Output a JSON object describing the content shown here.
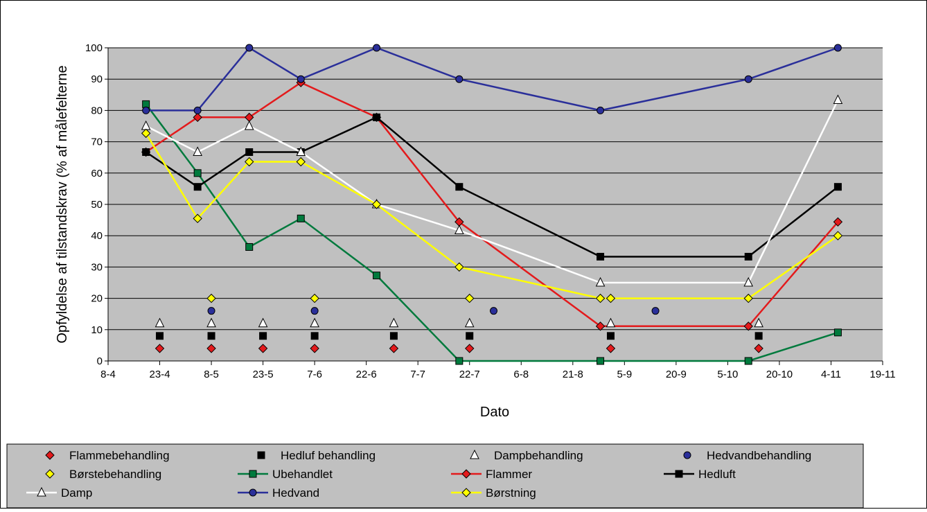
{
  "chart_data": {
    "type": "line",
    "xlabel": "Dato",
    "ylabel": "Opfyldelse af tilstandskrav (% af målefelterne",
    "ylim": [
      0,
      100
    ],
    "yticks": [
      0,
      10,
      20,
      30,
      40,
      50,
      60,
      70,
      80,
      90,
      100
    ],
    "xlim": [
      "2008-04-08",
      "2008-11-19"
    ],
    "xticks": [
      {
        "date": "2008-04-08",
        "label": "8-4"
      },
      {
        "date": "2008-04-23",
        "label": "23-4"
      },
      {
        "date": "2008-05-08",
        "label": "8-5"
      },
      {
        "date": "2008-05-23",
        "label": "23-5"
      },
      {
        "date": "2008-06-07",
        "label": "7-6"
      },
      {
        "date": "2008-06-22",
        "label": "22-6"
      },
      {
        "date": "2008-07-07",
        "label": "7-7"
      },
      {
        "date": "2008-07-22",
        "label": "22-7"
      },
      {
        "date": "2008-08-06",
        "label": "6-8"
      },
      {
        "date": "2008-08-21",
        "label": "21-8"
      },
      {
        "date": "2008-09-05",
        "label": "5-9"
      },
      {
        "date": "2008-09-20",
        "label": "20-9"
      },
      {
        "date": "2008-10-05",
        "label": "5-10"
      },
      {
        "date": "2008-10-20",
        "label": "20-10"
      },
      {
        "date": "2008-11-04",
        "label": "4-11"
      },
      {
        "date": "2008-11-19",
        "label": "19-11"
      }
    ],
    "grid": "horizontal",
    "legend_position": "bottom",
    "series": [
      {
        "name": "Flammebehandling",
        "kind": "marker",
        "marker": "diamond",
        "color": "#e31a1c",
        "points": [
          [
            "2008-04-23",
            4
          ],
          [
            "2008-05-08",
            4
          ],
          [
            "2008-05-23",
            4
          ],
          [
            "2008-06-07",
            4
          ],
          [
            "2008-06-30",
            4
          ],
          [
            "2008-07-22",
            4
          ],
          [
            "2008-09-01",
            4
          ],
          [
            "2008-10-14",
            4
          ]
        ]
      },
      {
        "name": "Hedluf behandling",
        "kind": "marker",
        "marker": "square",
        "color": "#000000",
        "points": [
          [
            "2008-04-23",
            8
          ],
          [
            "2008-05-08",
            8
          ],
          [
            "2008-05-23",
            8
          ],
          [
            "2008-06-07",
            8
          ],
          [
            "2008-06-30",
            8
          ],
          [
            "2008-07-22",
            8
          ],
          [
            "2008-09-01",
            8
          ],
          [
            "2008-10-14",
            8
          ]
        ]
      },
      {
        "name": "Dampbehandling",
        "kind": "marker",
        "marker": "triangle",
        "color": "#ffffff",
        "points": [
          [
            "2008-04-23",
            12
          ],
          [
            "2008-05-08",
            12
          ],
          [
            "2008-05-23",
            12
          ],
          [
            "2008-06-07",
            12
          ],
          [
            "2008-06-30",
            12
          ],
          [
            "2008-07-22",
            12
          ],
          [
            "2008-09-01",
            12
          ],
          [
            "2008-10-14",
            12
          ]
        ]
      },
      {
        "name": "Hedvandbehandling",
        "kind": "marker",
        "marker": "circle",
        "color": "#2a2f9a",
        "points": [
          [
            "2008-05-08",
            16
          ],
          [
            "2008-06-07",
            16
          ],
          [
            "2008-07-29",
            16
          ],
          [
            "2008-09-14",
            16
          ]
        ]
      },
      {
        "name": "Børstebehandling",
        "kind": "marker",
        "marker": "diamond",
        "color": "#ffff00",
        "points": [
          [
            "2008-05-08",
            20
          ],
          [
            "2008-06-07",
            20
          ],
          [
            "2008-07-22",
            20
          ],
          [
            "2008-09-01",
            20
          ]
        ]
      },
      {
        "name": "Ubehandlet",
        "kind": "line",
        "marker": "square",
        "color": "#007a3d",
        "markerFill": "#007a3d",
        "points": [
          [
            "2008-04-19",
            82
          ],
          [
            "2008-05-04",
            60
          ],
          [
            "2008-05-19",
            36.4
          ],
          [
            "2008-06-03",
            45.5
          ],
          [
            "2008-06-25",
            27.3
          ],
          [
            "2008-07-19",
            0
          ],
          [
            "2008-08-29",
            0
          ],
          [
            "2008-10-11",
            0
          ],
          [
            "2008-11-06",
            9.1
          ]
        ]
      },
      {
        "name": "Flammer",
        "kind": "line",
        "marker": "diamond",
        "color": "#e31a1c",
        "markerFill": "#e31a1c",
        "points": [
          [
            "2008-04-19",
            66.7
          ],
          [
            "2008-05-04",
            77.8
          ],
          [
            "2008-05-19",
            77.8
          ],
          [
            "2008-06-03",
            88.9
          ],
          [
            "2008-06-25",
            77.8
          ],
          [
            "2008-07-19",
            44.4
          ],
          [
            "2008-08-29",
            11.1
          ],
          [
            "2008-10-11",
            11.1
          ],
          [
            "2008-11-06",
            44.4
          ]
        ]
      },
      {
        "name": "Hedluft",
        "kind": "line",
        "marker": "square",
        "color": "#000000",
        "markerFill": "#000000",
        "points": [
          [
            "2008-04-19",
            66.7
          ],
          [
            "2008-05-04",
            55.6
          ],
          [
            "2008-05-19",
            66.7
          ],
          [
            "2008-06-03",
            66.7
          ],
          [
            "2008-06-25",
            77.8
          ],
          [
            "2008-07-19",
            55.6
          ],
          [
            "2008-08-29",
            33.3
          ],
          [
            "2008-10-11",
            33.3
          ],
          [
            "2008-11-06",
            55.6
          ]
        ]
      },
      {
        "name": "Damp",
        "kind": "line",
        "marker": "triangle",
        "color": "#ffffff",
        "markerFill": "#ffffff",
        "points": [
          [
            "2008-04-19",
            75
          ],
          [
            "2008-05-04",
            66.7
          ],
          [
            "2008-05-19",
            75
          ],
          [
            "2008-06-03",
            66.7
          ],
          [
            "2008-06-25",
            50
          ],
          [
            "2008-07-19",
            41.7
          ],
          [
            "2008-08-29",
            25
          ],
          [
            "2008-10-11",
            25
          ],
          [
            "2008-11-06",
            83.3
          ]
        ]
      },
      {
        "name": "Hedvand",
        "kind": "line",
        "marker": "circle",
        "color": "#2a2f9a",
        "markerFill": "#2a2f9a",
        "points": [
          [
            "2008-04-19",
            80
          ],
          [
            "2008-05-04",
            80
          ],
          [
            "2008-05-19",
            100
          ],
          [
            "2008-06-03",
            90
          ],
          [
            "2008-06-25",
            100
          ],
          [
            "2008-07-19",
            90
          ],
          [
            "2008-08-29",
            80
          ],
          [
            "2008-10-11",
            90
          ],
          [
            "2008-11-06",
            100
          ]
        ]
      },
      {
        "name": "Børstning",
        "kind": "line",
        "marker": "diamond",
        "color": "#ffff00",
        "markerFill": "#ffff00",
        "points": [
          [
            "2008-04-19",
            72.7
          ],
          [
            "2008-05-04",
            45.5
          ],
          [
            "2008-05-19",
            63.6
          ],
          [
            "2008-06-03",
            63.6
          ],
          [
            "2008-06-25",
            50
          ],
          [
            "2008-07-19",
            30
          ],
          [
            "2008-08-29",
            20
          ],
          [
            "2008-10-11",
            20
          ],
          [
            "2008-11-06",
            40
          ]
        ]
      }
    ],
    "colors": {
      "plot_background": "#c0c0c0",
      "legend_background": "#c0c0c0"
    }
  }
}
